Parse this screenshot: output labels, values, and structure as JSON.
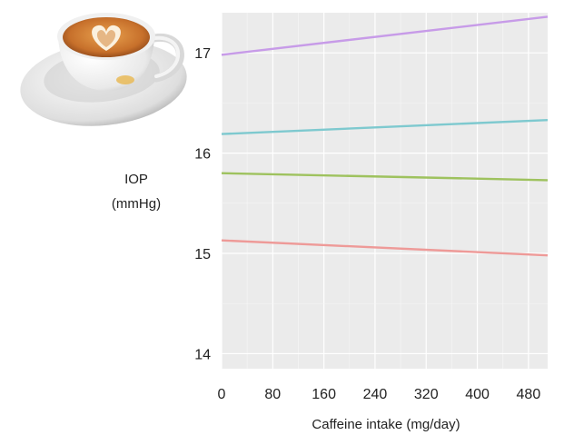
{
  "chart_data": {
    "type": "line",
    "title": "",
    "xlabel": "Caffeine intake (mg/day)",
    "ylabel_lines": [
      "IOP",
      "(mmHg)"
    ],
    "xlim": [
      0,
      510
    ],
    "ylim": [
      13.85,
      17.4
    ],
    "xticks": [
      0,
      80,
      160,
      240,
      320,
      400,
      480
    ],
    "yticks": [
      14,
      15,
      16,
      17
    ],
    "grid": true,
    "legend": "none",
    "series": [
      {
        "color": "#c79be8",
        "x": [
          0,
          510
        ],
        "y": [
          16.98,
          17.36
        ]
      },
      {
        "color": "#7ec9cf",
        "x": [
          0,
          510
        ],
        "y": [
          16.19,
          16.33
        ]
      },
      {
        "color": "#9ec25e",
        "x": [
          0,
          510
        ],
        "y": [
          15.8,
          15.73
        ]
      },
      {
        "color": "#ee9a98",
        "x": [
          0,
          510
        ],
        "y": [
          15.13,
          14.98
        ]
      }
    ]
  },
  "illustration": {
    "name": "latte-art coffee cup with saucer",
    "icon": "coffee-cup-icon"
  }
}
